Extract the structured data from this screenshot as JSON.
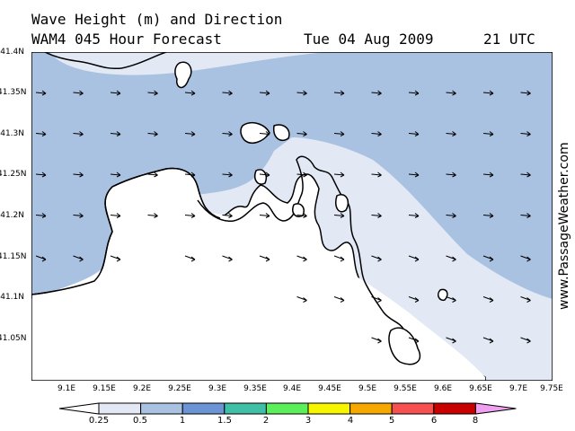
{
  "title_line1": "Wave Height (m) and Direction",
  "title_line2": "WAM4 045 Hour Forecast",
  "forecast_date": "Tue 04 Aug 2009",
  "forecast_time": "21 UTC",
  "watermark": "www.PassageWeather.com",
  "lat_labels": [
    "41.4N",
    "41.35N",
    "41.3N",
    "41.25N",
    "41.2N",
    "41.15N",
    "41.1N",
    "41.05N"
  ],
  "lon_labels": [
    "9.1E",
    "9.15E",
    "9.2E",
    "9.25E",
    "9.3E",
    "9.35E",
    "9.4E",
    "9.45E",
    "9.5E",
    "9.55E",
    "9.6E",
    "9.65E",
    "9.7E",
    "9.75E"
  ],
  "legend": {
    "labels": [
      "0.25",
      "0.5",
      "1",
      "1.5",
      "2",
      "3",
      "4",
      "5",
      "6",
      "8"
    ],
    "colors": [
      "#ffffff",
      "#e2e9f5",
      "#aac2e2",
      "#6c93d3",
      "#3fbfa5",
      "#5bef5b",
      "#f6f600",
      "#f6a800",
      "#f65050",
      "#c80000",
      "#f0a0f0"
    ]
  },
  "map_colors": {
    "water_light": "#e2e9f5",
    "water_mid": "#aac2e2",
    "land": "#ffffff",
    "coast": "#000000"
  },
  "wave_direction": "east-southeast"
}
